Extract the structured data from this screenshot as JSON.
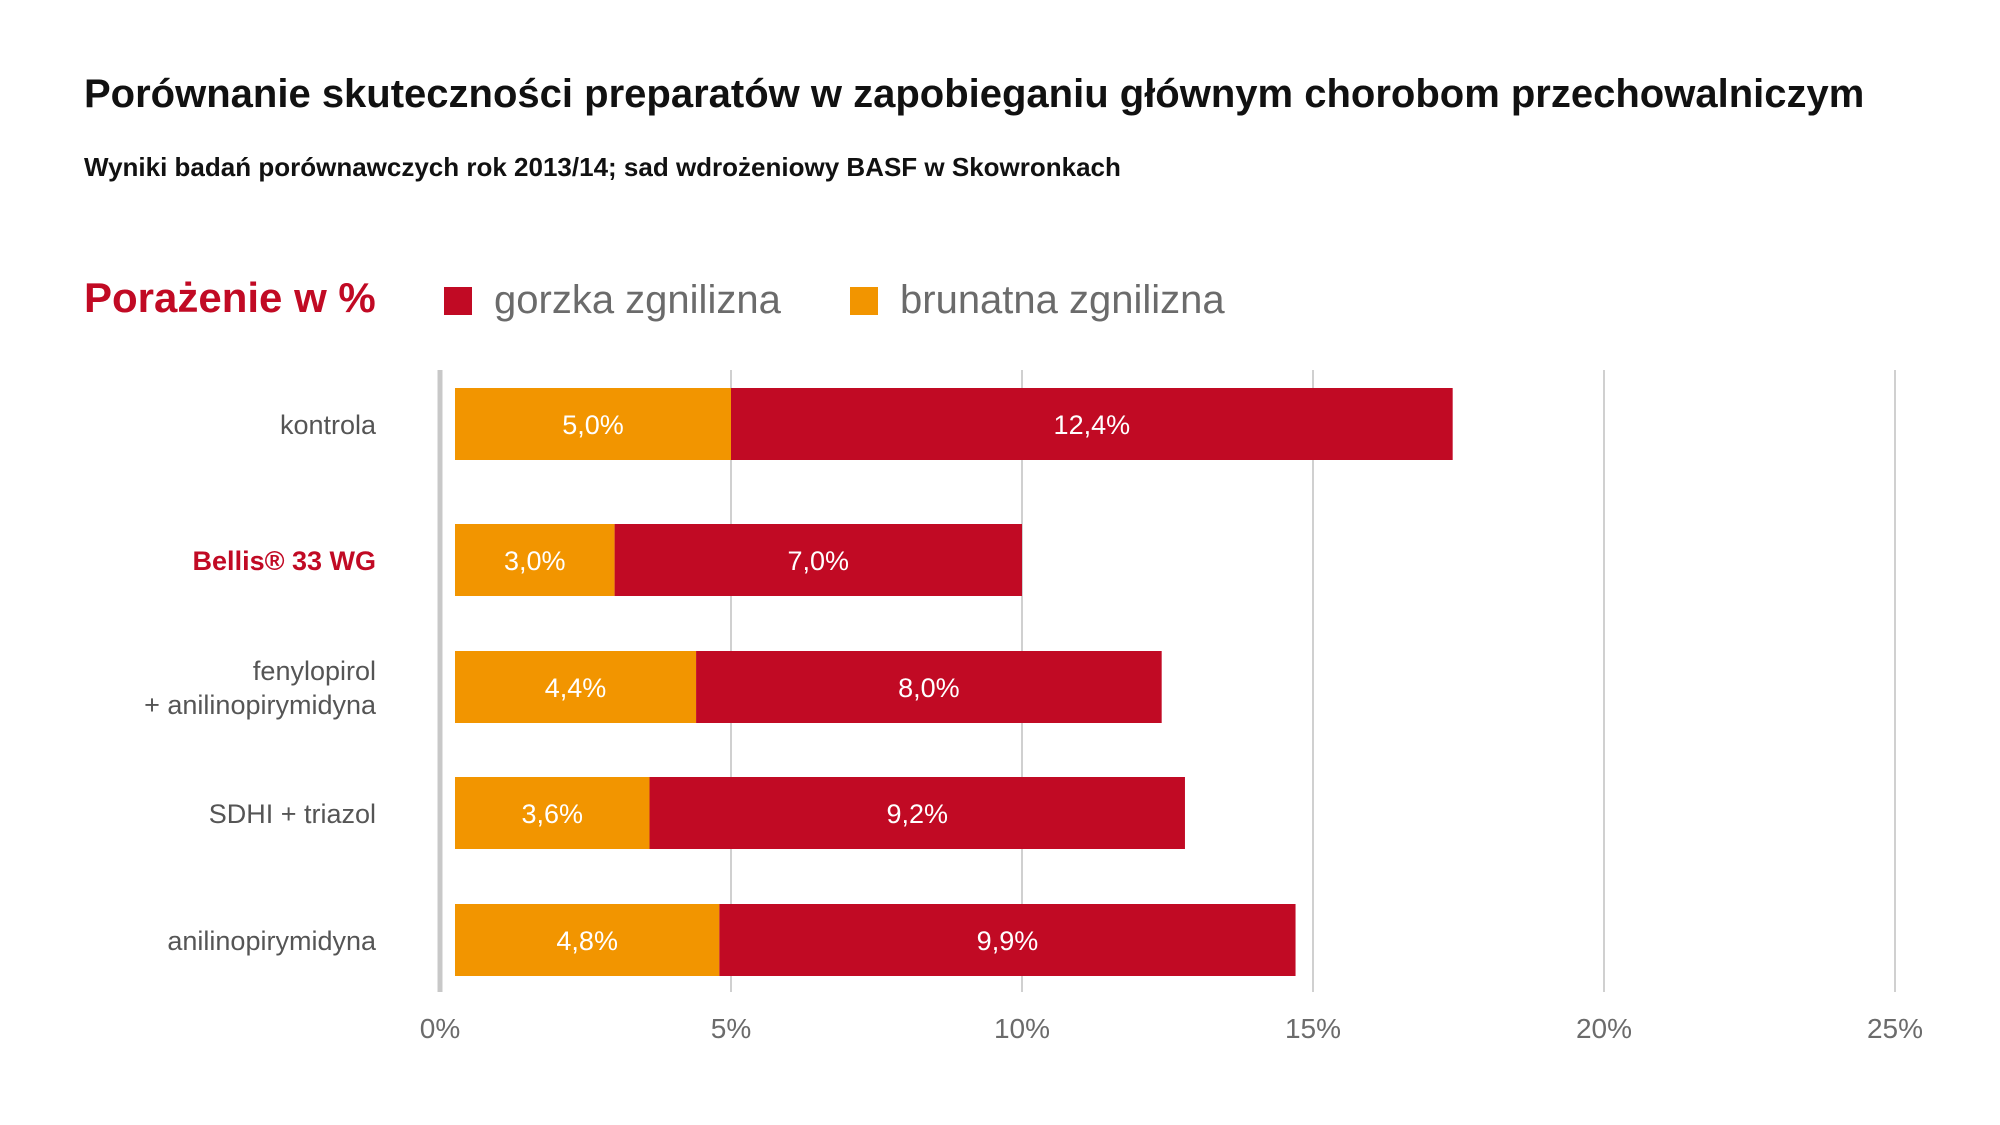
{
  "colors": {
    "bitter_rot": "#c10a24",
    "brown_rot": "#f29500",
    "highlight": "#c10a24",
    "grid": "#d0d0d0",
    "axis_text": "#6b6b6b",
    "label_text": "#555555"
  },
  "chart_data": {
    "type": "bar",
    "orientation": "horizontal",
    "stacked": true,
    "title": "Porównanie skuteczności preparatów w zapobieganiu głównym chorobom przechowalniczym",
    "subtitle": "Wyniki badań porównawczych rok 2013/14; sad wdrożeniowy BASF w Skowronkach",
    "axis_title": "Porażenie w %",
    "categories": [
      {
        "lines": [
          "kontrola"
        ],
        "highlight": false
      },
      {
        "lines": [
          "Bellis® 33 WG"
        ],
        "highlight": true
      },
      {
        "lines": [
          "fenylopirol",
          "+ anilinopirymidyna"
        ],
        "highlight": false
      },
      {
        "lines": [
          "SDHI + triazol"
        ],
        "highlight": false
      },
      {
        "lines": [
          "anilinopirymidyna"
        ],
        "highlight": false
      }
    ],
    "series": [
      {
        "name": "brunatna zgnilizna",
        "color_key": "brown_rot",
        "values": [
          5.0,
          3.0,
          4.4,
          3.6,
          4.8
        ],
        "labels": [
          "5,0%",
          "3,0%",
          "4,4%",
          "3,6%",
          "4,8%"
        ]
      },
      {
        "name": "gorzka zgnilizna",
        "color_key": "bitter_rot",
        "values": [
          12.4,
          7.0,
          8.0,
          9.2,
          9.9
        ],
        "labels": [
          "12,4%",
          "7,0%",
          "8,0%",
          "9,2%",
          "9,9%"
        ]
      }
    ],
    "legend": [
      {
        "label": "gorzka zgnilizna",
        "color_key": "bitter_rot"
      },
      {
        "label": "brunatna zgnilizna",
        "color_key": "brown_rot"
      }
    ],
    "xlim": [
      0,
      25
    ],
    "xticks": [
      0,
      5,
      10,
      15,
      20,
      25
    ],
    "xtick_labels": [
      "0%",
      "5%",
      "10%",
      "15%",
      "20%",
      "25%"
    ],
    "grid": true,
    "legend_position": "top"
  }
}
